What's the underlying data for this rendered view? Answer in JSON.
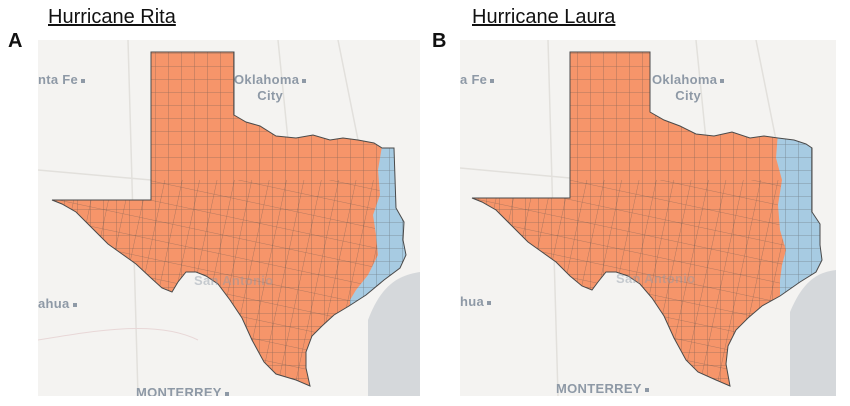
{
  "panels": [
    {
      "letter": "A",
      "title": "Hurricane Rita",
      "labels": {
        "santa_fe": "nta Fe",
        "oklahoma": "Oklahoma",
        "city": "City",
        "chihuahua": "ahua",
        "monterrey": "MONTERREY",
        "san_antonio": "San Antonio"
      }
    },
    {
      "letter": "B",
      "title": "Hurricane Laura",
      "labels": {
        "santa_fe": "a Fe",
        "oklahoma": "Oklahoma",
        "city": "City",
        "chihuahua": "hua",
        "monterrey": "MONTERREY",
        "san_antonio": "San Antonio"
      }
    }
  ],
  "colors": {
    "not_affected": "#f6956a",
    "affected": "#a7cbe2",
    "county_border": "#4a4a4a",
    "water": "#d5d8db",
    "land": "#f4f3f1",
    "road": "#e2e0dc",
    "city_label": "#8e99a6"
  }
}
